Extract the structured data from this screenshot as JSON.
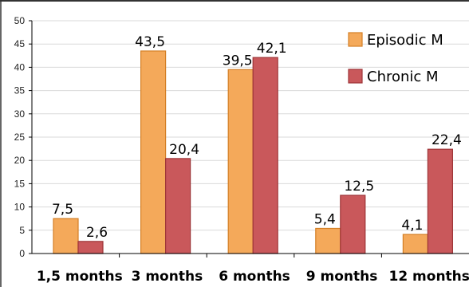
{
  "chart_data": {
    "type": "bar",
    "title": "",
    "xlabel": "",
    "ylabel": "",
    "categories": [
      "1,5 months",
      "3 months",
      "6 months",
      "9 months",
      "12 months"
    ],
    "series": [
      {
        "name": "Episodic M",
        "values": [
          7.5,
          43.5,
          39.5,
          5.4,
          4.1
        ],
        "labels": [
          "7,5",
          "43,5",
          "39,5",
          "5,4",
          "4,1"
        ],
        "color": "#F4A95A",
        "stroke": "#D47F25"
      },
      {
        "name": "Chronic M",
        "values": [
          2.6,
          20.4,
          42.1,
          12.5,
          22.4
        ],
        "labels": [
          "2,6",
          "20,4",
          "42,1",
          "12,5",
          "22,4"
        ],
        "color": "#C9585B",
        "stroke": "#9E3538"
      }
    ],
    "ylim": [
      0,
      50
    ],
    "yticks": [
      0,
      5,
      10,
      15,
      20,
      25,
      30,
      35,
      40,
      45,
      50
    ],
    "grid": true,
    "legend_position": "top-right",
    "colors": {
      "grid": "#d9d9d9",
      "axis": "#000000",
      "frame": "#333333"
    }
  }
}
